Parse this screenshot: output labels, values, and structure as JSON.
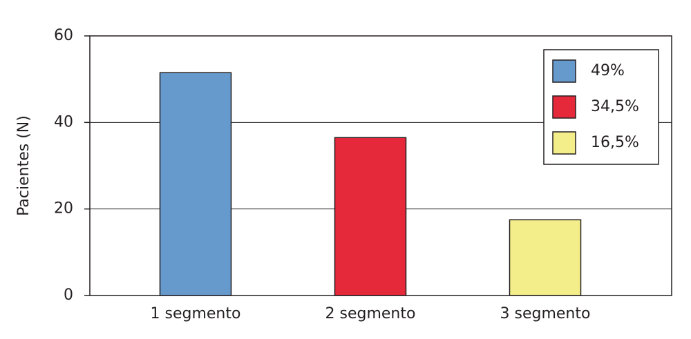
{
  "chart_data": {
    "type": "bar",
    "y_label": "Pacientes (N)",
    "categories": [
      "1 segmento",
      "2 segmento",
      "3 segmento"
    ],
    "values": [
      51.5,
      36.5,
      17.5
    ],
    "colors": [
      "#6699cc",
      "#e5293b",
      "#f3ee8a"
    ],
    "legend_labels": [
      "49%",
      "34,5%",
      "16,5%"
    ],
    "legend_position": "upper right",
    "ylim": [
      0,
      60
    ],
    "yticks": [
      0,
      20,
      40,
      60
    ],
    "grid": true
  }
}
